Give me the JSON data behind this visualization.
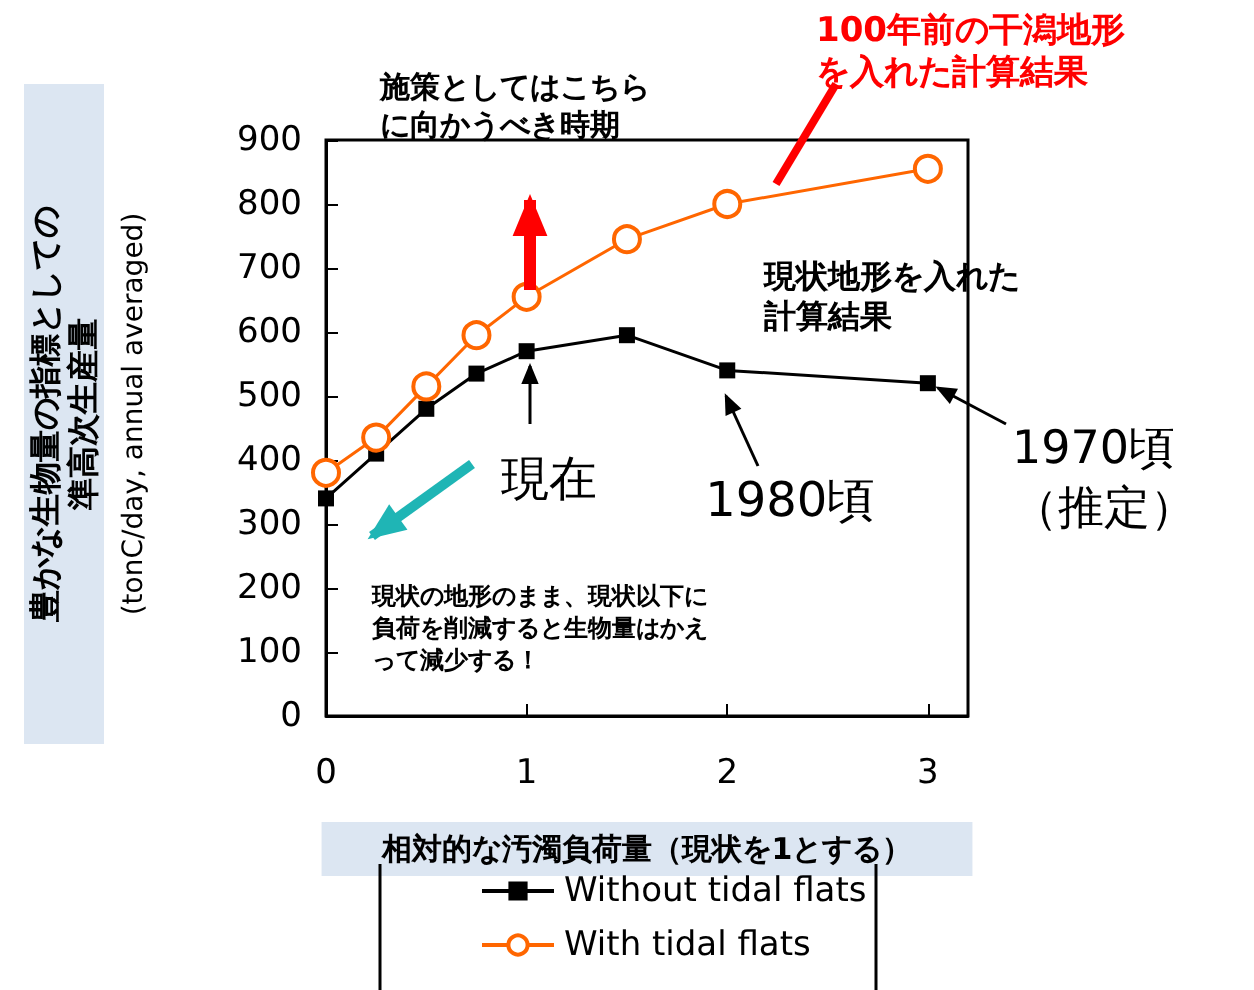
{
  "chart_data": {
    "type": "line",
    "ylabel": "豊かな生物量の指標としての準高次生産量(tonC/day, annual averaged)",
    "xlabel": "相対的な汚濁負荷量（現状を1とする）",
    "x": [
      0,
      0.25,
      0.5,
      0.75,
      1,
      1.5,
      2,
      3
    ],
    "series": [
      {
        "name": "Without tidal flats",
        "color": "#000000",
        "marker": "square",
        "values": [
          340,
          410,
          480,
          535,
          570,
          595,
          540,
          520
        ]
      },
      {
        "name": "With tidal flats",
        "color": "#ff6600",
        "marker": "circle",
        "values": [
          380,
          435,
          515,
          595,
          655,
          745,
          800,
          855
        ]
      }
    ],
    "xlim": [
      0,
      3.2
    ],
    "xticks": [
      0,
      1,
      2,
      3
    ],
    "ylim": [
      0,
      900
    ],
    "yticks": [
      0,
      100,
      200,
      300,
      400,
      500,
      600,
      700,
      800,
      900
    ],
    "grid": false,
    "legend": "bottom",
    "line_style": "solid",
    "annotations": [
      "施策としてはこちらに向かうべき時期",
      "100年前の干潟地形を入れた計算結果",
      "現状地形を入れた計算結果",
      {
        "text": "現在",
        "x": 1,
        "y": 570
      },
      {
        "text": "1980頃",
        "x": 2,
        "y": 540
      },
      {
        "text": "1970頃（推定）",
        "x": 3,
        "y": 520
      },
      "現状の地形のまま、現状以下に負荷を削減すると生物量はかえって減少する！"
    ]
  }
}
